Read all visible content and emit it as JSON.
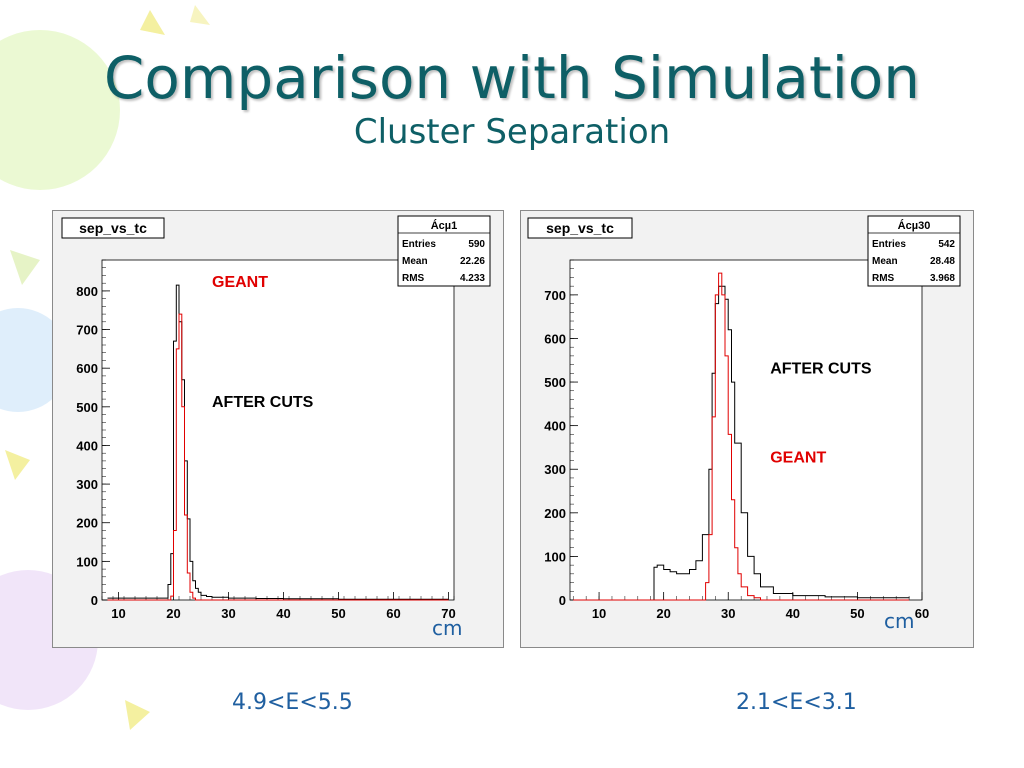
{
  "slide": {
    "title": "Comparison with Simulation",
    "subtitle": "Cluster Separation",
    "theme_color": "#0e5f66",
    "caption_color": "#1f5fa0"
  },
  "chart_data": [
    {
      "type": "histogram",
      "title": "sep_vs_tc",
      "unit_label": "cm",
      "range_label": "4.9<E<5.5",
      "stats": {
        "name": "Ácµ1",
        "rows": [
          [
            "Entries",
            "590"
          ],
          [
            "Mean",
            "22.26"
          ],
          [
            "RMS",
            "4.233"
          ]
        ]
      },
      "xlim": [
        7,
        71
      ],
      "ylim": [
        0,
        880
      ],
      "xticks": [
        10,
        20,
        30,
        40,
        50,
        60,
        70
      ],
      "yticks": [
        0,
        100,
        200,
        300,
        400,
        500,
        600,
        700,
        800
      ],
      "annotations": [
        {
          "text": "GEANT",
          "color": "#e00000",
          "x": 27,
          "y": 810
        },
        {
          "text": "AFTER CUTS",
          "color": "#000000",
          "x": 27,
          "y": 500
        }
      ],
      "series": [
        {
          "name": "AFTER CUTS",
          "color": "#000000",
          "x": [
            8,
            19,
            19.5,
            20,
            20.5,
            21,
            21.5,
            22,
            22.5,
            23,
            23.5,
            24,
            24.5,
            25,
            26,
            27,
            30,
            35,
            40,
            50,
            60,
            70
          ],
          "y": [
            5,
            40,
            120,
            670,
            815,
            720,
            570,
            360,
            210,
            100,
            50,
            30,
            20,
            12,
            9,
            7,
            5,
            4,
            3,
            2,
            2,
            2
          ]
        },
        {
          "name": "GEANT",
          "color": "#e00000",
          "x": [
            8,
            18.5,
            19.5,
            20,
            20.5,
            21,
            21.5,
            22,
            22.5,
            23,
            23.5,
            24,
            30,
            60,
            70
          ],
          "y": [
            0,
            0,
            10,
            180,
            650,
            740,
            500,
            220,
            70,
            20,
            5,
            0,
            0,
            0,
            0
          ]
        }
      ]
    },
    {
      "type": "histogram",
      "title": "sep_vs_tc",
      "unit_label": "cm",
      "range_label": "2.1<E<3.1",
      "stats": {
        "name": "Ácµ30",
        "rows": [
          [
            "Entries",
            "542"
          ],
          [
            "Mean",
            "28.48"
          ],
          [
            "RMS",
            "3.968"
          ]
        ]
      },
      "xlim": [
        5.5,
        60
      ],
      "ylim": [
        0,
        780
      ],
      "xticks": [
        10,
        20,
        30,
        40,
        50,
        60
      ],
      "yticks": [
        0,
        100,
        200,
        300,
        400,
        500,
        600,
        700
      ],
      "annotations": [
        {
          "text": "AFTER CUTS",
          "color": "#000000",
          "x": 36.5,
          "y": 520
        },
        {
          "text": "GEANT",
          "color": "#e00000",
          "x": 36.5,
          "y": 315
        }
      ],
      "series": [
        {
          "name": "AFTER CUTS",
          "color": "#000000",
          "x": [
            6,
            18,
            18.5,
            19,
            20,
            21,
            22,
            23,
            24,
            25,
            26,
            27,
            27.5,
            28,
            28.5,
            29,
            29.5,
            30,
            30.5,
            31,
            32,
            33,
            34,
            35,
            37,
            40,
            45,
            50,
            58
          ],
          "y": [
            0,
            0,
            75,
            80,
            70,
            65,
            60,
            60,
            70,
            90,
            150,
            300,
            520,
            680,
            720,
            720,
            690,
            620,
            500,
            360,
            200,
            100,
            60,
            30,
            15,
            10,
            7,
            5,
            4
          ]
        },
        {
          "name": "GEANT",
          "color": "#e00000",
          "x": [
            6,
            26,
            26.5,
            27,
            27.5,
            28,
            28.5,
            29,
            29.5,
            30,
            30.5,
            31,
            31.5,
            32,
            33,
            34,
            35,
            40,
            58
          ],
          "y": [
            0,
            0,
            40,
            150,
            420,
            700,
            750,
            700,
            560,
            380,
            230,
            120,
            60,
            30,
            10,
            5,
            0,
            0,
            0
          ]
        }
      ]
    }
  ]
}
